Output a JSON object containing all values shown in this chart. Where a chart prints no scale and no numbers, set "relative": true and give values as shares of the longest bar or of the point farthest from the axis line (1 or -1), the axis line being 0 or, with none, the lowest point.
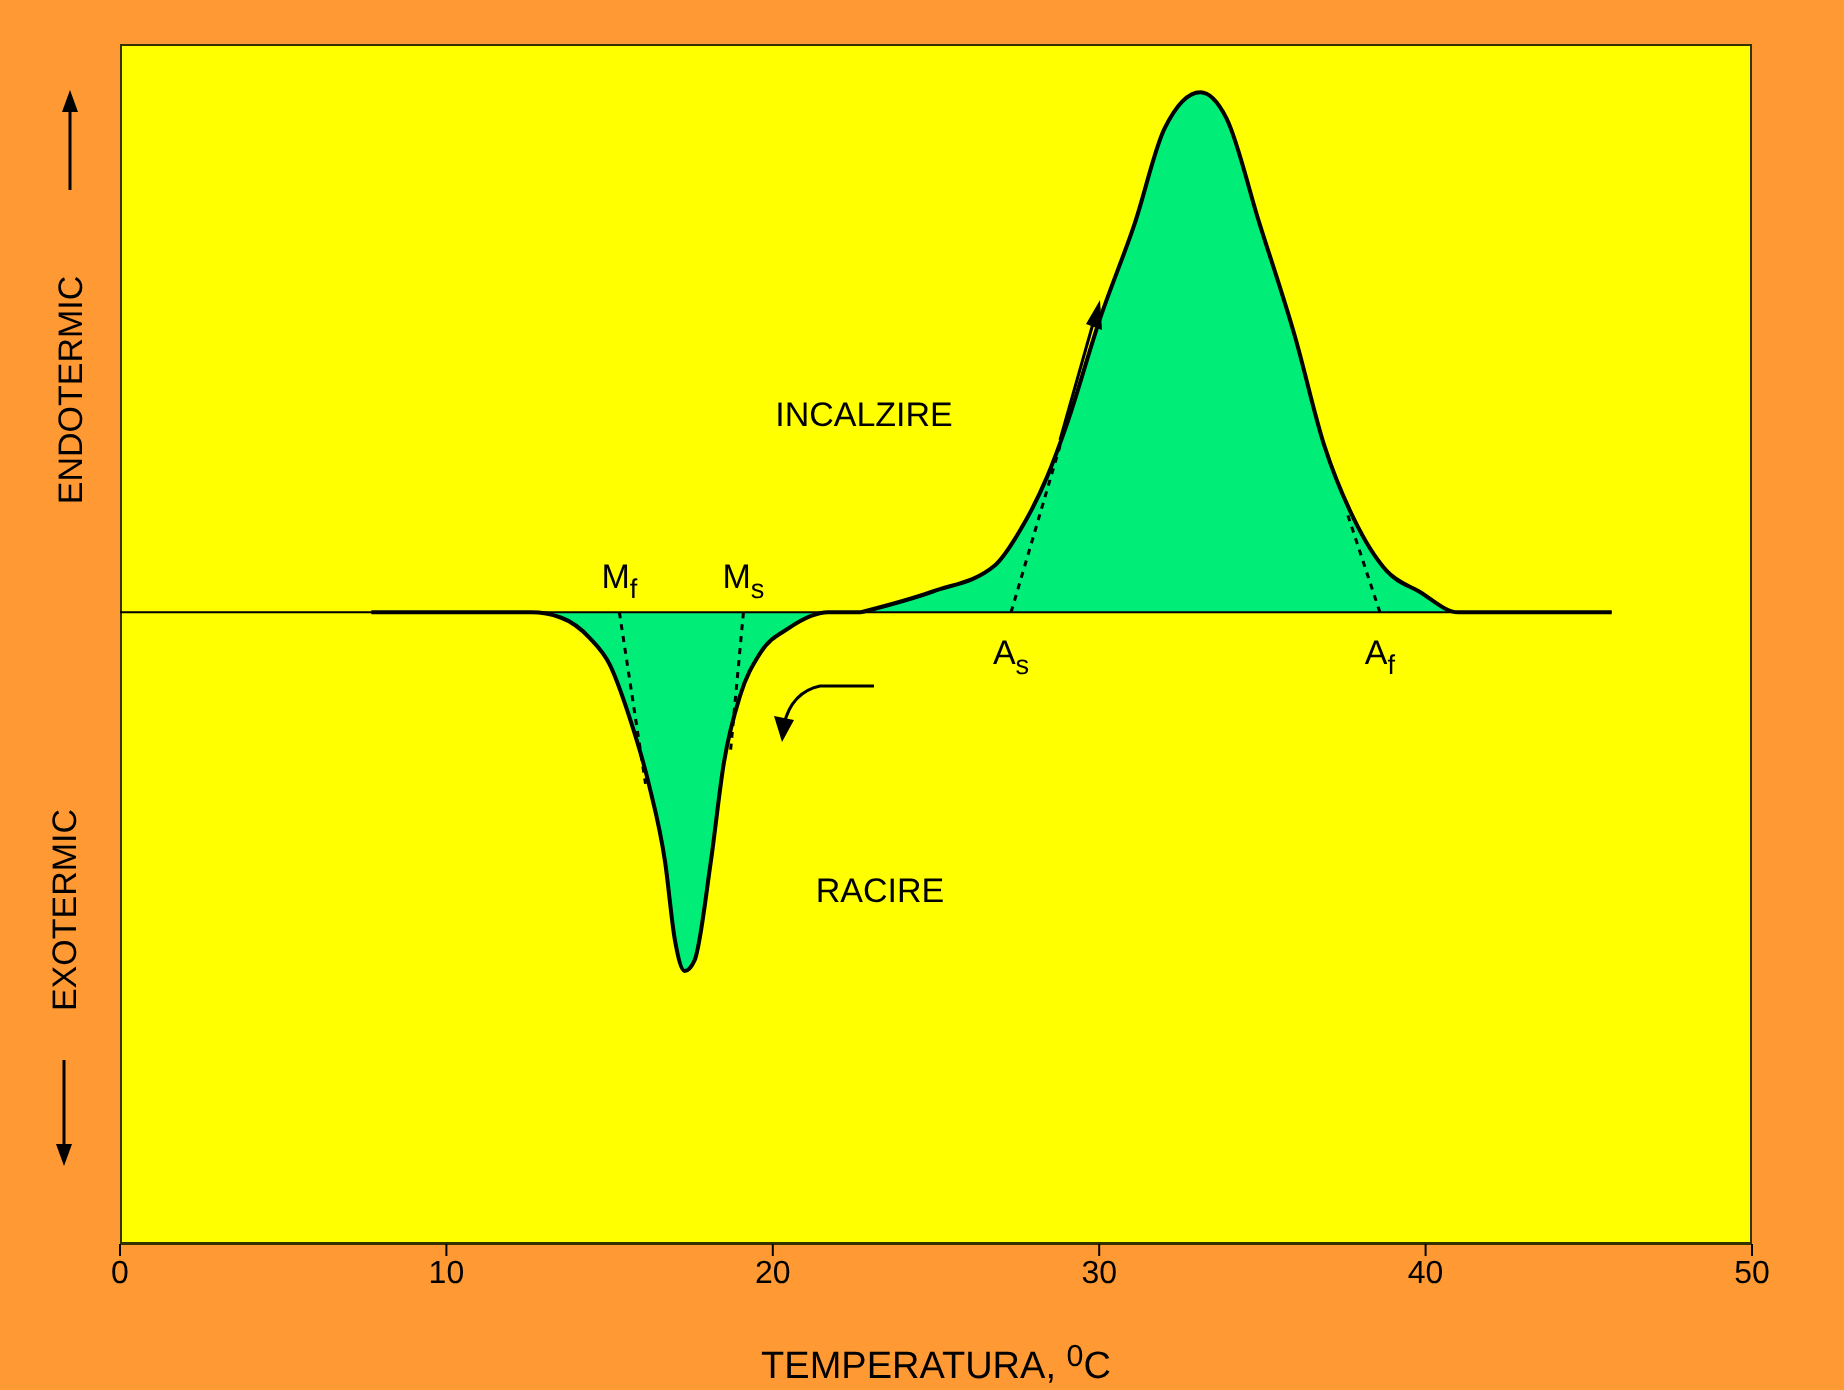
{
  "chart_data": {
    "type": "area",
    "relative": true,
    "xlabel": "TEMPERATURA, $^{0}$C",
    "xlim": [
      0,
      50
    ],
    "xticks": [
      0,
      10,
      20,
      30,
      40,
      50
    ],
    "series": [
      {
        "color": "#00ee77",
        "x": [
          7.7,
          12.6,
          13.5,
          14.4,
          15.0,
          15.6,
          16.2,
          16.7,
          17.0,
          17.3,
          17.6,
          18.1,
          18.5,
          19.0,
          19.6,
          20.5,
          21.7,
          22.7
        ],
        "values": [
          0,
          0,
          -0.01,
          -0.05,
          -0.1,
          -0.2,
          -0.33,
          -0.48,
          -0.63,
          -0.69,
          -0.67,
          -0.48,
          -0.29,
          -0.16,
          -0.08,
          -0.03,
          0,
          0
        ]
      },
      {
        "color": "#00ee77",
        "x": [
          22.7,
          24.9,
          26.8,
          27.6,
          28.4,
          29.0,
          30.0,
          31.1,
          32.0,
          33.1,
          33.9,
          34.9,
          36.0,
          36.9,
          37.8,
          38.8,
          39.8,
          41.0,
          45.7
        ],
        "values": [
          0,
          0.04,
          0.09,
          0.16,
          0.26,
          0.36,
          0.56,
          0.75,
          0.93,
          1,
          0.95,
          0.75,
          0.53,
          0.32,
          0.18,
          0.08,
          0.04,
          0,
          0
        ]
      },
      {
        "type": "line",
        "line_style": "dashed",
        "color": "#000000",
        "x": [
          15.3,
          16.1
        ],
        "values": [
          0,
          -0.33
        ]
      },
      {
        "type": "line",
        "line_style": "dashed",
        "color": "#000000",
        "x": [
          19.1,
          18.7
        ],
        "values": [
          0,
          -0.27
        ]
      },
      {
        "type": "line",
        "line_style": "dashed",
        "color": "#000000",
        "x": [
          27.3,
          28.8
        ],
        "values": [
          0,
          0.32
        ]
      },
      {
        "type": "line",
        "line_style": "dashed",
        "color": "#000000",
        "x": [
          38.6,
          37.6
        ],
        "values": [
          0,
          0.19
        ]
      }
    ],
    "annotations": [
      "ENDOTERMIC",
      "EXOTERMIC",
      {
        "text": "M$_{f}$",
        "x": 15.3,
        "y": 0
      },
      {
        "text": "M$_{s}$",
        "x": 19.1,
        "y": 0
      },
      {
        "text": "A$_{s}$",
        "x": 27.3,
        "y": 0
      },
      {
        "text": "A$_{f}$",
        "x": 38.6,
        "y": 0
      },
      "INCALZIRE",
      "RACIRE"
    ]
  }
}
